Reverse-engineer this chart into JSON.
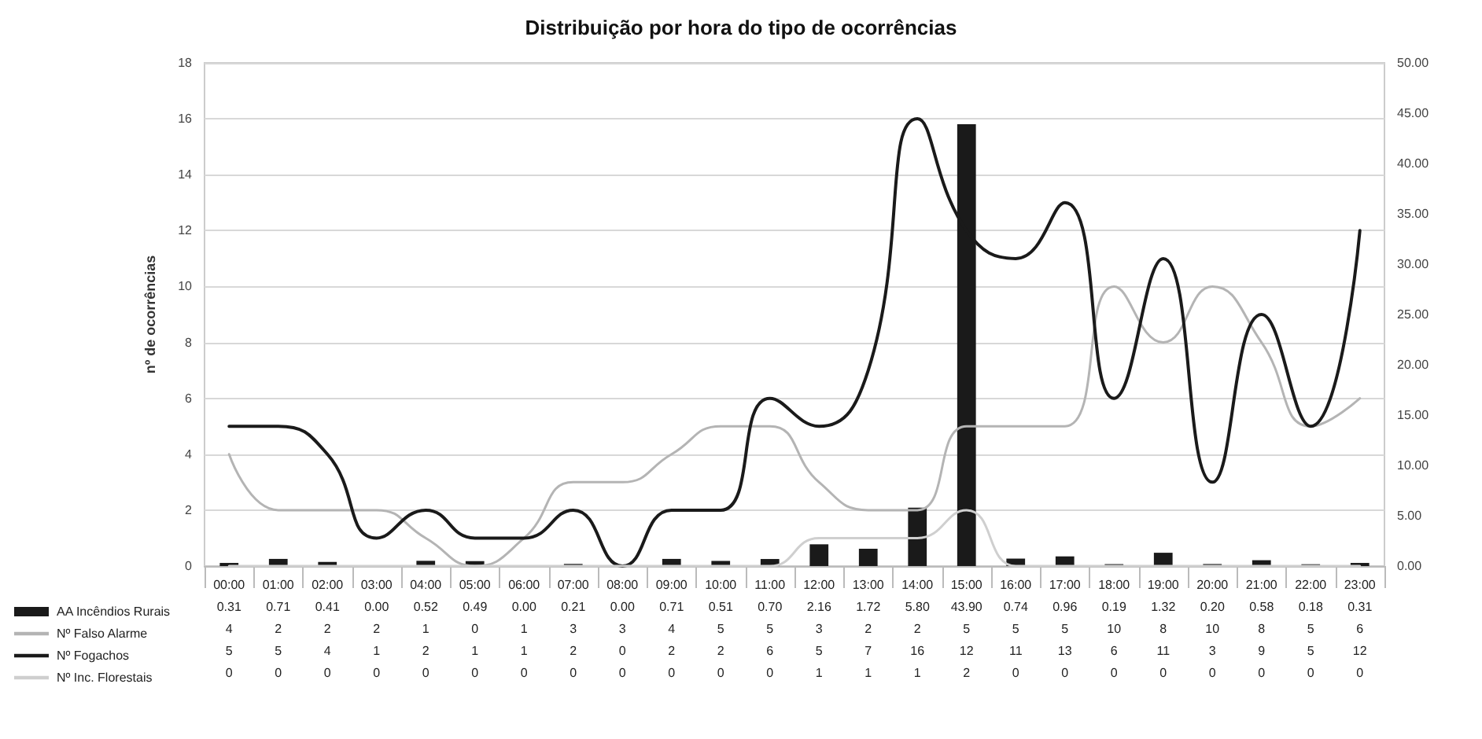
{
  "chart_data": {
    "type": "line",
    "title": "Distribuição por hora do tipo de ocorrências",
    "ylabel": "nº de ocorrências",
    "categories": [
      "00:00",
      "01:00",
      "02:00",
      "03:00",
      "04:00",
      "05:00",
      "06:00",
      "07:00",
      "08:00",
      "09:00",
      "10:00",
      "11:00",
      "12:00",
      "13:00",
      "14:00",
      "15:00",
      "16:00",
      "17:00",
      "18:00",
      "19:00",
      "20:00",
      "21:00",
      "22:00",
      "23:00"
    ],
    "series": [
      {
        "name": "AA Incêndios Rurais",
        "type": "bar",
        "axis": "y2",
        "color": "#1a1a1a",
        "values": [
          0.31,
          0.71,
          0.41,
          0.0,
          0.52,
          0.49,
          0.0,
          0.21,
          0.0,
          0.71,
          0.51,
          0.7,
          2.16,
          1.72,
          5.8,
          43.9,
          0.74,
          0.96,
          0.19,
          1.32,
          0.2,
          0.58,
          0.18,
          0.31
        ],
        "value_labels": [
          "0.31",
          "0.71",
          "0.41",
          "0.00",
          "0.52",
          "0.49",
          "0.00",
          "0.21",
          "0.00",
          "0.71",
          "0.51",
          "0.70",
          "2.16",
          "1.72",
          "5.80",
          "43.90",
          "0.74",
          "0.96",
          "0.19",
          "1.32",
          "0.20",
          "0.58",
          "0.18",
          "0.31"
        ]
      },
      {
        "name": "Nº Falso Alarme",
        "color": "#b4b4b4",
        "values": [
          4,
          2,
          2,
          2,
          1,
          0,
          1,
          3,
          3,
          4,
          5,
          5,
          3,
          2,
          2,
          5,
          5,
          5,
          10,
          8,
          10,
          8,
          5,
          6
        ],
        "value_labels": [
          "4",
          "2",
          "2",
          "2",
          "1",
          "0",
          "1",
          "3",
          "3",
          "4",
          "5",
          "5",
          "3",
          "2",
          "2",
          "5",
          "5",
          "5",
          "10",
          "8",
          "10",
          "8",
          "5",
          "6"
        ]
      },
      {
        "name": "Nº Fogachos",
        "color": "#1a1a1a",
        "values": [
          5,
          5,
          4,
          1,
          2,
          1,
          1,
          2,
          0,
          2,
          2,
          6,
          5,
          7,
          16,
          12,
          11,
          13,
          6,
          11,
          3,
          9,
          5,
          12
        ],
        "value_labels": [
          "5",
          "5",
          "4",
          "1",
          "2",
          "1",
          "1",
          "2",
          "0",
          "2",
          "2",
          "6",
          "5",
          "7",
          "16",
          "12",
          "11",
          "13",
          "6",
          "11",
          "3",
          "9",
          "5",
          "12"
        ]
      },
      {
        "name": "Nº Inc. Florestais",
        "color": "#cfcfcf",
        "values": [
          0,
          0,
          0,
          0,
          0,
          0,
          0,
          0,
          0,
          0,
          0,
          0,
          1,
          1,
          1,
          2,
          0,
          0,
          0,
          0,
          0,
          0,
          0,
          0
        ],
        "value_labels": [
          "0",
          "0",
          "0",
          "0",
          "0",
          "0",
          "0",
          "0",
          "0",
          "0",
          "0",
          "0",
          "1",
          "1",
          "1",
          "2",
          "0",
          "0",
          "0",
          "0",
          "0",
          "0",
          "0",
          "0"
        ]
      }
    ],
    "ylim": [
      0,
      18
    ],
    "yticks": [
      0,
      2,
      4,
      6,
      8,
      10,
      12,
      14,
      16,
      18
    ],
    "y2lim": [
      0,
      50
    ],
    "y2ticks": [
      {
        "value": 0,
        "label": "0.00"
      },
      {
        "value": 5,
        "label": "5.00"
      },
      {
        "value": 10,
        "label": "10.00"
      },
      {
        "value": 15,
        "label": "15.00"
      },
      {
        "value": 20,
        "label": "20.00"
      },
      {
        "value": 25,
        "label": "25.00"
      },
      {
        "value": 30,
        "label": "30.00"
      },
      {
        "value": 35,
        "label": "35.00"
      },
      {
        "value": 40,
        "label": "40.00"
      },
      {
        "value": 45,
        "label": "45.00"
      },
      {
        "value": 50,
        "label": "50.00"
      }
    ],
    "grid": "y",
    "legend": "bottom",
    "marker": "none",
    "line_style": "solid"
  }
}
